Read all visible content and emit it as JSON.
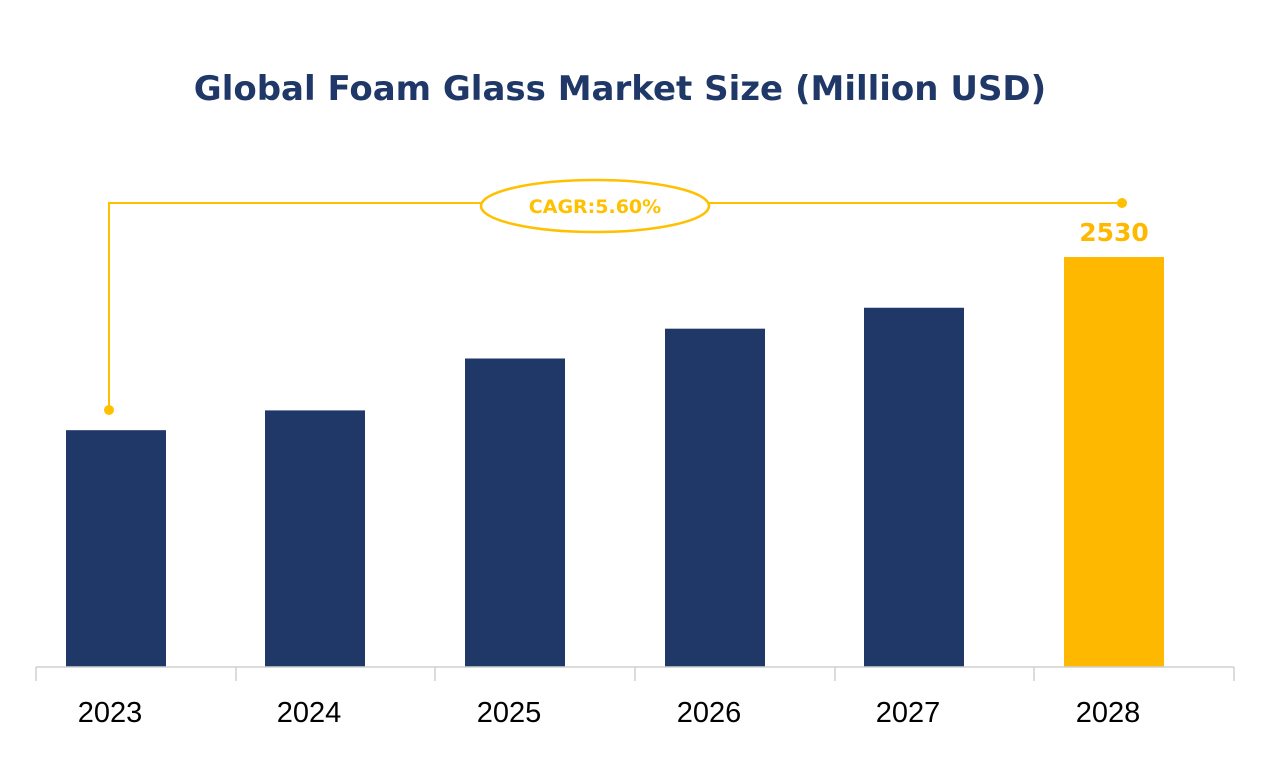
{
  "chart_data": {
    "type": "bar",
    "title": "Global Foam Glass Market Size (Million USD)",
    "categories": [
      "2023",
      "2024",
      "2025",
      "2026",
      "2027",
      "2028"
    ],
    "values": [
      1926,
      1995,
      2176,
      2280,
      2353,
      2530
    ],
    "data_labels": {
      "2028": "2530"
    },
    "annotation": "CAGR:5.60%",
    "xlabel": "",
    "ylabel": "",
    "ylim": [
      1100,
      2530
    ],
    "grid": false,
    "legend": "none",
    "colors": {
      "bar": "#1f3868",
      "highlight": "#ffb800",
      "annotation": "#ffc000",
      "title": "#1f3868"
    }
  }
}
